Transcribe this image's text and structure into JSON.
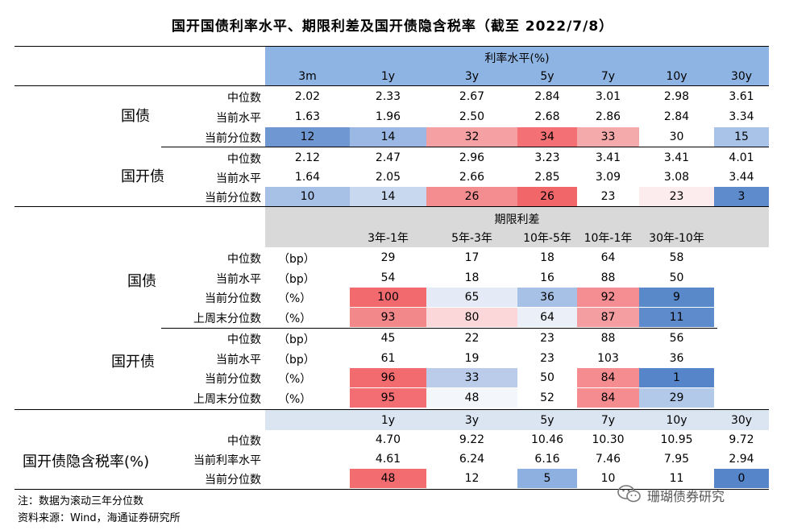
{
  "title": "国开国债利率水平、期限利差及国开债隐含税率（截至 2022/7/8）",
  "section1": {
    "header_title": "利率水平(%)",
    "columns": [
      "3m",
      "1y",
      "3y",
      "5y",
      "7y",
      "10y",
      "30y"
    ],
    "groups": [
      {
        "name": "国债",
        "rows": [
          {
            "label": "中位数",
            "values": [
              "2.02",
              "2.33",
              "2.67",
              "2.84",
              "3.01",
              "2.98",
              "3.61"
            ]
          },
          {
            "label": "当前水平",
            "values": [
              "1.63",
              "1.96",
              "2.50",
              "2.68",
              "2.86",
              "2.84",
              "3.34"
            ]
          },
          {
            "label": "当前分位数",
            "values": [
              "12",
              "14",
              "32",
              "34",
              "33",
              "30",
              "15"
            ],
            "colors": [
              "#6f98d2",
              "#9ab8e3",
              "#f5a1a4",
              "#f37074",
              "#f4a9ab",
              "#ffffff",
              "#a9c3e8"
            ]
          }
        ]
      },
      {
        "name": "国开债",
        "rows": [
          {
            "label": "中位数",
            "values": [
              "2.12",
              "2.47",
              "2.96",
              "3.23",
              "3.41",
              "3.41",
              "4.01"
            ]
          },
          {
            "label": "当前水平",
            "values": [
              "1.64",
              "2.05",
              "2.66",
              "2.85",
              "3.09",
              "3.08",
              "3.44"
            ]
          },
          {
            "label": "当前分位数",
            "values": [
              "10",
              "14",
              "26",
              "26",
              "23",
              "23",
              "3"
            ],
            "colors": [
              "#a7c1e6",
              "#c8d8ef",
              "#f38d90",
              "#f16669",
              "#ffffff",
              "#fcecee",
              "#5d8bcc"
            ]
          }
        ]
      }
    ]
  },
  "section2": {
    "header_title": "期限利差",
    "columns": [
      "3年-1年",
      "5年-3年",
      "10年-5年",
      "10年-1年",
      "30年-10年"
    ],
    "groups": [
      {
        "name": "国债",
        "rows": [
          {
            "label": "中位数",
            "unit": "（bp）",
            "values": [
              "29",
              "17",
              "18",
              "64",
              "58"
            ]
          },
          {
            "label": "当前水平",
            "unit": "（bp）",
            "values": [
              "54",
              "18",
              "16",
              "88",
              "50"
            ]
          },
          {
            "label": "当前分位数",
            "unit": "（%）",
            "values": [
              "100",
              "65",
              "36",
              "92",
              "9"
            ],
            "colors": [
              "#f26a6e",
              "#e4ebf6",
              "#a7c1e6",
              "#f58e92",
              "#5a89ca"
            ]
          },
          {
            "label": "上周末分位数",
            "unit": "（%）",
            "values": [
              "93",
              "80",
              "64",
              "87",
              "11"
            ],
            "colors": [
              "#f3888b",
              "#fbd7d9",
              "#ebf0f8",
              "#f59ea1",
              "#5d8bcc"
            ]
          }
        ]
      },
      {
        "name": "国开债",
        "rows": [
          {
            "label": "中位数",
            "unit": "（bp）",
            "values": [
              "45",
              "22",
              "23",
              "88",
              "56"
            ]
          },
          {
            "label": "当前水平",
            "unit": "（bp）",
            "values": [
              "61",
              "19",
              "23",
              "103",
              "36"
            ]
          },
          {
            "label": "当前分位数",
            "unit": "（%）",
            "values": [
              "96",
              "33",
              "50",
              "84",
              "1"
            ],
            "colors": [
              "#f26b6f",
              "#bacce9",
              "#ffffff",
              "#f58d90",
              "#5686c9"
            ]
          },
          {
            "label": "上周末分位数",
            "unit": "（%）",
            "values": [
              "95",
              "48",
              "52",
              "84",
              "29"
            ],
            "colors": [
              "#f26e72",
              "#f3f6fb",
              "#ffffff",
              "#f58d90",
              "#b3c9ea"
            ]
          }
        ]
      }
    ]
  },
  "section3": {
    "columns": [
      "1y",
      "3y",
      "5y",
      "7y",
      "10y",
      "30y"
    ],
    "name": "国开债隐含税率(%)",
    "rows": [
      {
        "label": "中位数",
        "values": [
          "4.70",
          "9.22",
          "10.46",
          "10.30",
          "10.95",
          "9.72"
        ]
      },
      {
        "label": "当前利率水平",
        "values": [
          "4.61",
          "6.24",
          "6.16",
          "7.46",
          "7.95",
          "2.94"
        ]
      },
      {
        "label": "当前分位数",
        "values": [
          "48",
          "12",
          "5",
          "10",
          "11",
          "0"
        ],
        "colors": [
          "#f26c70",
          "#ffffff",
          "#8eb0e0",
          "#ffffff",
          "#ffffff",
          "#5686c9"
        ]
      }
    ]
  },
  "notes": {
    "note": "注：数据为滚动三年分位数",
    "source": "资料来源：Wind，海通证券研究所"
  },
  "watermark": "珊瑚债券研究"
}
